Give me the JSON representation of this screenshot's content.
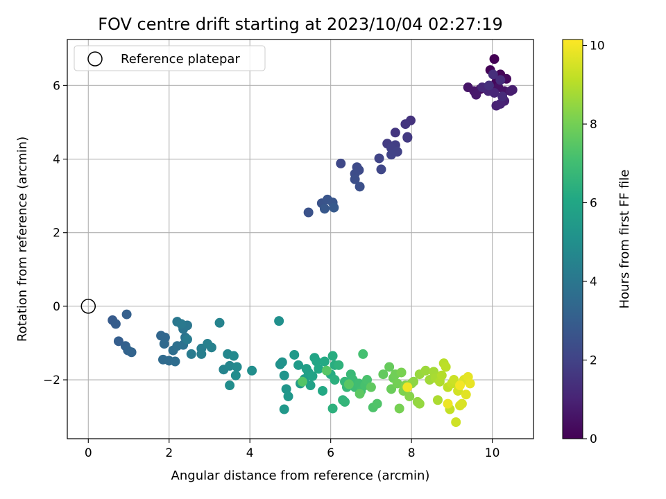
{
  "chart_data": {
    "type": "scatter",
    "title": "FOV centre drift starting at 2023/10/04 02:27:19",
    "xlabel": "Angular distance from reference (arcmin)",
    "ylabel": "Rotation from reference (arcmin)",
    "xlim": [
      -0.52,
      11.02
    ],
    "ylim": [
      -3.6,
      7.25
    ],
    "xticks": [
      0,
      2,
      4,
      6,
      8,
      10
    ],
    "yticks": [
      -2,
      0,
      2,
      4,
      6
    ],
    "xtick_labels": [
      "0",
      "2",
      "4",
      "6",
      "8",
      "10"
    ],
    "ytick_labels": [
      "−2",
      "0",
      "2",
      "4",
      "6"
    ],
    "grid": true,
    "legend": {
      "position": "top-left",
      "entries": [
        "Reference platepar"
      ]
    },
    "colorbar": {
      "label": "Hours from first FF file",
      "colormap": "viridis",
      "range": [
        0,
        10.15
      ],
      "ticks": [
        0,
        2,
        4,
        6,
        8,
        10
      ],
      "tick_labels": [
        "0",
        "2",
        "4",
        "6",
        "8",
        "10"
      ]
    },
    "reference_point": {
      "name": "Reference platepar",
      "x": 0,
      "y": 0
    },
    "series": [
      {
        "values": [
          [
            10.05,
            6.72
          ],
          [
            9.95,
            6.42
          ],
          [
            10.2,
            6.3
          ],
          [
            10.1,
            6.1
          ],
          [
            10.35,
            6.18
          ],
          [
            9.7,
            5.9
          ],
          [
            9.85,
            5.92
          ],
          [
            10.0,
            5.85
          ],
          [
            10.15,
            5.95
          ],
          [
            10.3,
            5.85
          ],
          [
            9.4,
            5.95
          ],
          [
            9.55,
            5.85
          ],
          [
            9.6,
            5.75
          ],
          [
            10.45,
            5.85
          ],
          [
            10.5,
            5.88
          ],
          [
            10.3,
            5.58
          ],
          [
            10.1,
            5.45
          ],
          [
            10.2,
            5.5
          ],
          [
            9.9,
            5.85
          ],
          [
            10.05,
            5.8
          ],
          [
            9.75,
            5.95
          ],
          [
            10.25,
            5.7
          ],
          [
            10.2,
            6.15
          ],
          [
            10.02,
            6.3
          ],
          [
            9.92,
            6.0
          ]
        ]
      },
      {
        "values": [
          [
            7.98,
            5.05
          ],
          [
            7.85,
            4.95
          ],
          [
            7.6,
            4.72
          ],
          [
            7.9,
            4.6
          ],
          [
            7.9,
            4.58
          ],
          [
            7.4,
            4.42
          ],
          [
            7.6,
            4.38
          ],
          [
            7.5,
            4.3
          ],
          [
            7.65,
            4.2
          ],
          [
            7.5,
            4.12
          ],
          [
            7.2,
            4.02
          ],
          [
            7.25,
            3.72
          ],
          [
            6.25,
            3.88
          ],
          [
            6.65,
            3.78
          ],
          [
            6.7,
            3.7
          ],
          [
            6.6,
            3.6
          ],
          [
            6.6,
            3.45
          ],
          [
            6.72,
            3.25
          ]
        ]
      },
      {
        "values": [
          [
            5.45,
            2.55
          ],
          [
            5.78,
            2.8
          ],
          [
            5.92,
            2.9
          ],
          [
            6.05,
            2.82
          ],
          [
            5.85,
            2.65
          ],
          [
            6.08,
            2.68
          ]
        ]
      },
      {
        "values": [
          [
            0.6,
            -0.38
          ],
          [
            0.68,
            -0.48
          ],
          [
            0.75,
            -0.95
          ],
          [
            0.95,
            -0.22
          ],
          [
            0.92,
            -1.08
          ],
          [
            0.98,
            -1.2
          ],
          [
            1.07,
            -1.25
          ],
          [
            1.8,
            -0.8
          ],
          [
            1.9,
            -0.85
          ],
          [
            1.88,
            -1.02
          ],
          [
            1.85,
            -1.45
          ],
          [
            2.0,
            -1.48
          ],
          [
            2.15,
            -1.5
          ],
          [
            2.1,
            -1.2
          ],
          [
            2.2,
            -1.08
          ],
          [
            2.35,
            -1.05
          ],
          [
            2.4,
            -0.85
          ],
          [
            2.35,
            -0.62
          ],
          [
            2.45,
            -0.52
          ],
          [
            2.2,
            -0.42
          ],
          [
            2.3,
            -0.48
          ],
          [
            2.45,
            -0.9
          ],
          [
            2.55,
            -1.3
          ],
          [
            2.8,
            -1.15
          ],
          [
            2.8,
            -1.3
          ],
          [
            2.95,
            -1.02
          ],
          [
            3.05,
            -1.12
          ],
          [
            3.25,
            -0.45
          ],
          [
            3.35,
            -1.72
          ],
          [
            3.5,
            -1.62
          ],
          [
            3.45,
            -1.3
          ],
          [
            3.6,
            -1.35
          ],
          [
            3.68,
            -1.65
          ],
          [
            3.65,
            -1.88
          ],
          [
            3.5,
            -2.15
          ],
          [
            4.05,
            -1.75
          ]
        ]
      },
      {
        "values": [
          [
            4.72,
            -0.4
          ],
          [
            4.75,
            -1.58
          ],
          [
            4.8,
            -1.52
          ],
          [
            4.85,
            -1.88
          ],
          [
            4.9,
            -2.25
          ],
          [
            4.95,
            -2.45
          ],
          [
            4.85,
            -2.8
          ],
          [
            5.1,
            -1.32
          ],
          [
            5.2,
            -1.6
          ],
          [
            5.25,
            -2.1
          ],
          [
            5.35,
            -1.98
          ],
          [
            5.4,
            -1.7
          ],
          [
            5.45,
            -1.8
          ],
          [
            5.5,
            -2.15
          ],
          [
            5.55,
            -1.9
          ],
          [
            5.6,
            -1.4
          ],
          [
            5.65,
            -1.5
          ],
          [
            5.7,
            -1.7
          ],
          [
            5.8,
            -2.3
          ],
          [
            5.85,
            -1.5
          ],
          [
            6.0,
            -1.85
          ],
          [
            6.05,
            -1.35
          ],
          [
            6.1,
            -1.6
          ],
          [
            6.1,
            -2.0
          ],
          [
            6.05,
            -2.78
          ],
          [
            6.2,
            -1.6
          ],
          [
            6.3,
            -2.55
          ],
          [
            6.35,
            -2.6
          ],
          [
            6.35,
            -2.05
          ],
          [
            6.4,
            -2.2
          ],
          [
            6.5,
            -1.85
          ],
          [
            6.55,
            -2.0
          ],
          [
            6.6,
            -2.2
          ],
          [
            6.7,
            -2.1
          ],
          [
            6.75,
            -2.3
          ],
          [
            6.8,
            -1.3
          ],
          [
            6.85,
            -2.15
          ],
          [
            6.9,
            -2.0
          ],
          [
            7.05,
            -2.75
          ],
          [
            7.15,
            -2.65
          ],
          [
            5.3,
            -2.05
          ],
          [
            5.9,
            -1.75
          ],
          [
            6.45,
            -2.12
          ],
          [
            6.72,
            -2.38
          ],
          [
            7.0,
            -2.2
          ]
        ]
      },
      {
        "values": [
          [
            7.3,
            -1.85
          ],
          [
            7.45,
            -1.65
          ],
          [
            7.5,
            -2.25
          ],
          [
            7.55,
            -1.95
          ],
          [
            7.6,
            -1.85
          ],
          [
            7.65,
            -2.1
          ],
          [
            7.7,
            -2.78
          ],
          [
            7.75,
            -1.8
          ],
          [
            7.8,
            -2.3
          ],
          [
            7.85,
            -2.15
          ],
          [
            7.95,
            -2.45
          ],
          [
            8.0,
            -2.1
          ],
          [
            8.05,
            -2.05
          ],
          [
            8.15,
            -2.6
          ],
          [
            8.2,
            -2.65
          ],
          [
            8.2,
            -1.85
          ],
          [
            8.35,
            -1.75
          ],
          [
            8.45,
            -2.0
          ],
          [
            8.55,
            -1.78
          ],
          [
            8.6,
            -1.95
          ],
          [
            8.65,
            -2.55
          ],
          [
            8.7,
            -2.05
          ],
          [
            8.75,
            -1.88
          ],
          [
            8.8,
            -1.55
          ],
          [
            8.85,
            -1.65
          ],
          [
            8.9,
            -2.2
          ],
          [
            8.95,
            -2.8
          ],
          [
            9.0,
            -2.1
          ],
          [
            9.05,
            -2.0
          ],
          [
            9.1,
            -3.15
          ],
          [
            9.15,
            -2.3
          ],
          [
            9.2,
            -2.7
          ],
          [
            9.25,
            -2.65
          ],
          [
            9.3,
            -2.0
          ],
          [
            9.35,
            -2.4
          ],
          [
            9.4,
            -1.92
          ],
          [
            9.45,
            -2.1
          ],
          [
            8.9,
            -2.65
          ],
          [
            7.9,
            -2.2
          ],
          [
            9.2,
            -2.15
          ]
        ]
      }
    ]
  }
}
